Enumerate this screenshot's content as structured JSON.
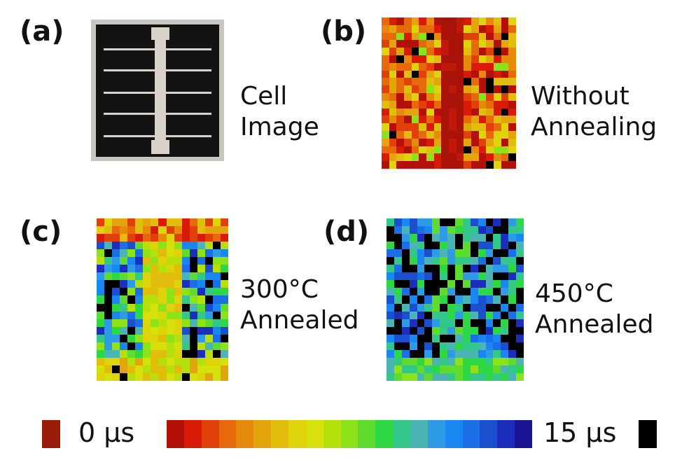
{
  "panels": {
    "a": {
      "label": "(a)",
      "caption_line1": "Cell",
      "caption_line2": "Image"
    },
    "b": {
      "label": "(b)",
      "caption_line1": "Without",
      "caption_line2": "Annealing"
    },
    "c": {
      "label": "(c)",
      "caption_line1": "300°C",
      "caption_line2": "Annealed"
    },
    "d": {
      "label": "(d)",
      "caption_line1": "450°C",
      "caption_line2": "Annealed"
    }
  },
  "colorbar": {
    "min_label": "0 µs",
    "max_label": "15 µs",
    "min_swatch_color": "#9b1b0b",
    "max_swatch_color": "#000000",
    "colors": [
      "#b31108",
      "#d91a06",
      "#e2400a",
      "#e66a0b",
      "#e68a0c",
      "#e3a40c",
      "#e1bd0c",
      "#dfd40b",
      "#d6e00a",
      "#b5e00c",
      "#8ee21a",
      "#5edb2c",
      "#2ed844",
      "#33c88a",
      "#4bb4b4",
      "#2f9be6",
      "#1a86f2",
      "#1a6ee6",
      "#1c4fce",
      "#1d2ebd",
      "#1a1495"
    ]
  }
}
